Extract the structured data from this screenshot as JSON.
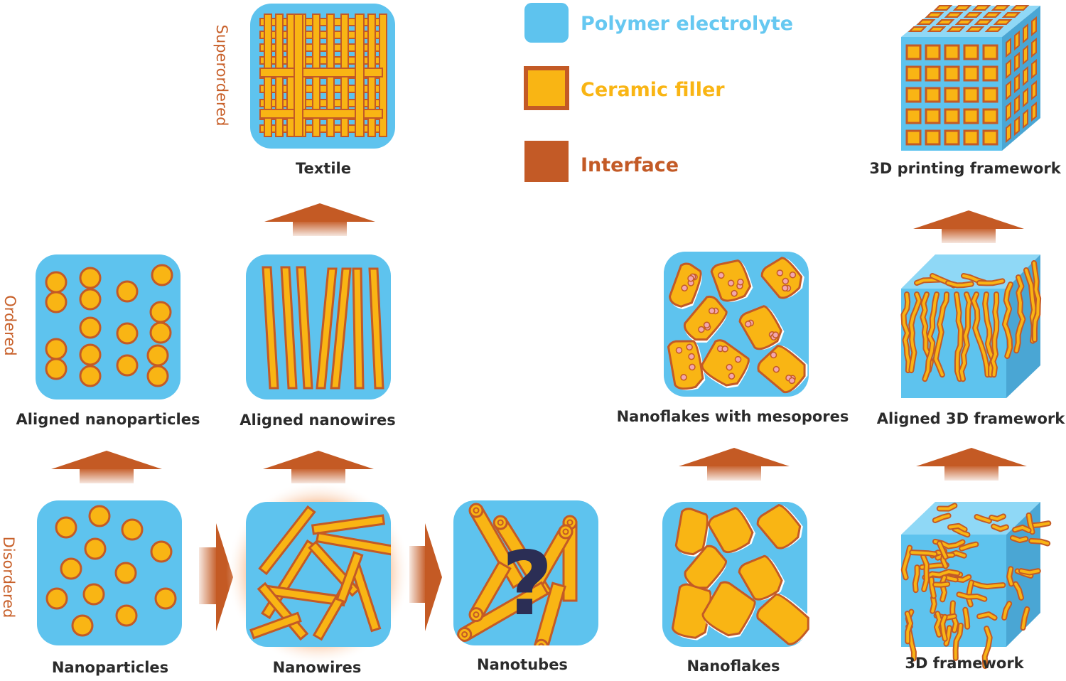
{
  "legend": {
    "polymer": "Polymer electrolyte",
    "ceramic": "Ceramic filler",
    "interface": "Interface"
  },
  "axis": {
    "superordered": "Superordered",
    "ordered": "Ordered",
    "disordered": "Disordered"
  },
  "labels": {
    "textile": "Textile",
    "printing_framework": "3D printing framework",
    "aligned_nanoparticles": "Aligned nanoparticles",
    "aligned_nanowires": "Aligned nanowires",
    "nanoflakes_mesopores": "Nanoflakes with mesopores",
    "aligned_3d_framework": "Aligned 3D framework",
    "nanoparticles": "Nanoparticles",
    "nanowires": "Nanowires",
    "nanotubes": "Nanotubes",
    "nanoflakes": "Nanoflakes",
    "framework_3d": "3D framework"
  },
  "question_mark": "?",
  "colors": {
    "polymer": "#5ec3ee",
    "ceramic": "#f9b514",
    "interface": "#c35a26",
    "label": "#2b2b2b",
    "axis": "#c8602a",
    "question": "#2b2e55"
  }
}
